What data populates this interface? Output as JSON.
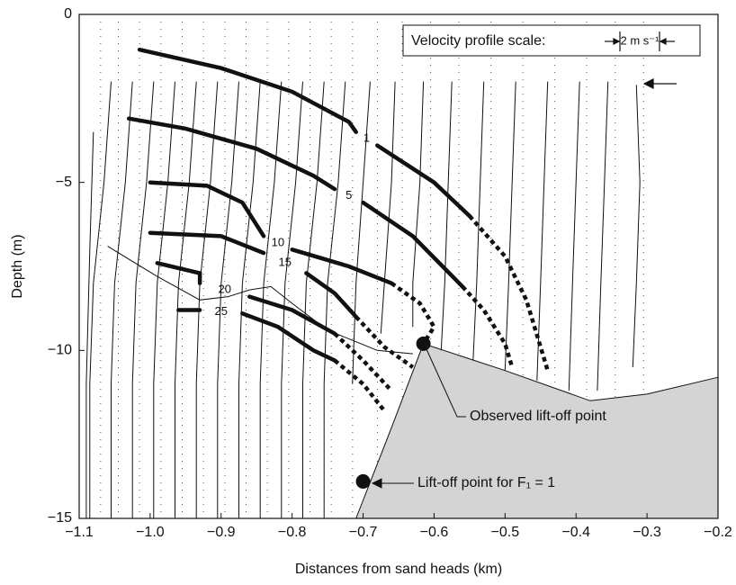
{
  "chart_data": {
    "type": "line",
    "x_label": "Distances from sand heads (km)",
    "y_label": "Depth (m)",
    "xlim": [
      -1.1,
      -0.2
    ],
    "ylim": [
      -15,
      0
    ],
    "xticks": [
      {
        "value": -1.1,
        "label": "−1.1"
      },
      {
        "value": -1.0,
        "label": "−1.0"
      },
      {
        "value": -0.9,
        "label": "−0.9"
      },
      {
        "value": -0.8,
        "label": "−0.8"
      },
      {
        "value": -0.7,
        "label": "−0.7"
      },
      {
        "value": -0.6,
        "label": "−0.6"
      },
      {
        "value": -0.5,
        "label": "−0.5"
      },
      {
        "value": -0.4,
        "label": "−0.4"
      },
      {
        "value": -0.3,
        "label": "−0.3"
      },
      {
        "value": -0.2,
        "label": "−0.2"
      }
    ],
    "yticks": [
      0,
      {
        "value": -5,
        "label": "−5"
      },
      {
        "value": -10,
        "label": "−10"
      },
      {
        "value": -15,
        "label": "−15"
      }
    ],
    "scale_title": "Velocity profile scale:",
    "scale_label": "2 m s⁻¹",
    "series": [
      {
        "name": "1",
        "color": "#111111",
        "x": [
          -1.015,
          -0.9,
          -0.8,
          -0.72,
          -0.71,
          null,
          -0.68,
          -0.6,
          -0.55
        ],
        "values": [
          -1.05,
          -1.6,
          -2.3,
          -3.2,
          -3.5,
          null,
          -3.9,
          -5.0,
          -6.0
        ],
        "dashed_x": [
          -0.55,
          -0.5,
          -0.47,
          -0.44
        ],
        "dashed_values": [
          -6.0,
          -7.2,
          -8.5,
          -10.6
        ]
      },
      {
        "name": "5",
        "color": "#111111",
        "x": [
          -1.03,
          -0.95,
          -0.85,
          -0.77,
          -0.74,
          null,
          -0.7,
          -0.63,
          -0.56
        ],
        "values": [
          -3.1,
          -3.4,
          -4.0,
          -4.8,
          -5.2,
          null,
          -5.6,
          -6.6,
          -8.1
        ],
        "dashed_x": [
          -0.56,
          -0.53,
          -0.5,
          -0.49
        ],
        "dashed_values": [
          -8.1,
          -8.8,
          -9.8,
          -10.5
        ]
      },
      {
        "name": "10",
        "color": "#111111",
        "x": [
          -1.0,
          -0.92,
          -0.87,
          -0.84,
          null,
          -0.8,
          -0.72,
          -0.66
        ],
        "values": [
          -5.0,
          -5.1,
          -5.6,
          -6.6,
          null,
          -7.0,
          -7.5,
          -8.0
        ],
        "dashed_x": [
          -0.66,
          -0.62,
          -0.6,
          -0.615
        ],
        "dashed_values": [
          -8.0,
          -8.6,
          -9.3,
          -9.8
        ]
      },
      {
        "name": "15",
        "color": "#111111",
        "x": [
          -1.0,
          -0.9,
          -0.84,
          null,
          -0.78,
          -0.74,
          -0.71
        ],
        "values": [
          -6.5,
          -6.6,
          -7.1,
          null,
          -7.7,
          -8.3,
          -9.0
        ],
        "dashed_x": [
          -0.71,
          -0.67,
          -0.63
        ],
        "dashed_values": [
          -9.0,
          -9.9,
          -10.5
        ]
      },
      {
        "name": "20",
        "color": "#111111",
        "x": [
          -0.99,
          -0.93,
          -0.93,
          null,
          -0.86,
          -0.8,
          -0.74
        ],
        "values": [
          -7.4,
          -7.7,
          -8.0,
          null,
          -8.4,
          -8.8,
          -9.5
        ],
        "dashed_x": [
          -0.74,
          -0.7,
          -0.66
        ],
        "dashed_values": [
          -9.5,
          -10.3,
          -11.2
        ]
      },
      {
        "name": "25",
        "color": "#111111",
        "x": [
          -0.96,
          -0.93,
          null,
          -0.87,
          -0.82,
          -0.77,
          -0.74
        ],
        "values": [
          -8.8,
          -8.8,
          null,
          -8.9,
          -9.3,
          -10.0,
          -10.3
        ],
        "dashed_x": [
          -0.74,
          -0.7,
          -0.67
        ],
        "dashed_values": [
          -10.3,
          -11.0,
          -11.8
        ]
      }
    ],
    "interface": {
      "x": [
        -1.06,
        -0.99,
        -0.93,
        -0.89,
        -0.86,
        -0.83,
        -0.8,
        -0.75,
        -0.68,
        -0.63
      ],
      "values": [
        -6.9,
        -7.8,
        -8.5,
        -8.4,
        -8.2,
        -8.1,
        -8.6,
        -9.4,
        -10.0,
        -10.1
      ]
    },
    "profiles": [
      {
        "x": [
          -1.08,
          -1.085,
          -1.09,
          -1.09
        ],
        "values": [
          -3.5,
          -7,
          -11,
          -15
        ]
      },
      {
        "x": [
          -1.055,
          -1.065,
          -1.08,
          -1.085,
          -1.085
        ],
        "values": [
          -2,
          -5,
          -8,
          -11,
          -15
        ]
      },
      {
        "x": [
          -1.025,
          -1.035,
          -1.05,
          -1.055,
          -1.055
        ],
        "values": [
          -2,
          -5,
          -8,
          -11,
          -15
        ]
      },
      {
        "x": [
          -0.995,
          -1.005,
          -1.02,
          -1.025,
          -1.025
        ],
        "values": [
          -2,
          -5,
          -8,
          -11,
          -15
        ]
      },
      {
        "x": [
          -0.965,
          -0.975,
          -0.99,
          -0.995,
          -0.995
        ],
        "values": [
          -2,
          -5,
          -8,
          -11,
          -15
        ]
      },
      {
        "x": [
          -0.935,
          -0.945,
          -0.96,
          -0.965,
          -0.965
        ],
        "values": [
          -2,
          -5,
          -8,
          -11,
          -15
        ]
      },
      {
        "x": [
          -0.905,
          -0.915,
          -0.93,
          -0.935,
          -0.935
        ],
        "values": [
          -2,
          -5,
          -8,
          -11,
          -15
        ]
      },
      {
        "x": [
          -0.875,
          -0.885,
          -0.9,
          -0.905,
          -0.905
        ],
        "values": [
          -2,
          -5,
          -8,
          -11,
          -15
        ]
      },
      {
        "x": [
          -0.845,
          -0.855,
          -0.87,
          -0.875,
          -0.875
        ],
        "values": [
          -2,
          -5,
          -8,
          -11,
          -15
        ]
      },
      {
        "x": [
          -0.815,
          -0.825,
          -0.84,
          -0.845,
          -0.845
        ],
        "values": [
          -2,
          -5,
          -8,
          -11,
          -15
        ]
      },
      {
        "x": [
          -0.785,
          -0.795,
          -0.81,
          -0.815,
          -0.815
        ],
        "values": [
          -2,
          -5,
          -8,
          -11,
          -15
        ]
      },
      {
        "x": [
          -0.755,
          -0.765,
          -0.78,
          -0.785,
          -0.785
        ],
        "values": [
          -2,
          -5,
          -8,
          -11,
          -15
        ]
      },
      {
        "x": [
          -0.725,
          -0.735,
          -0.75,
          -0.755,
          -0.755
        ],
        "values": [
          -2,
          -5,
          -8,
          -11,
          -15
        ]
      },
      {
        "x": [
          -0.69,
          -0.7,
          -0.71,
          -0.715
        ],
        "values": [
          -2,
          -5,
          -8,
          -11
        ]
      },
      {
        "x": [
          -0.655,
          -0.66,
          -0.67,
          -0.675
        ],
        "values": [
          -2,
          -5,
          -8,
          -9.5
        ]
      },
      {
        "x": [
          -0.615,
          -0.62,
          -0.63,
          -0.63
        ],
        "values": [
          -2,
          -5,
          -8,
          -9.3
        ]
      },
      {
        "x": [
          -0.575,
          -0.58,
          -0.585,
          -0.59
        ],
        "values": [
          -2,
          -5,
          -8,
          -10
        ]
      },
      {
        "x": [
          -0.53,
          -0.535,
          -0.54,
          -0.545
        ],
        "values": [
          -2,
          -5,
          -8,
          -10.3
        ]
      },
      {
        "x": [
          -0.485,
          -0.49,
          -0.495,
          -0.5
        ],
        "values": [
          -2,
          -5,
          -8,
          -10.6
        ]
      },
      {
        "x": [
          -0.44,
          -0.445,
          -0.45,
          -0.455
        ],
        "values": [
          -2,
          -5,
          -8,
          -10.9
        ]
      },
      {
        "x": [
          -0.395,
          -0.4,
          -0.405,
          -0.41
        ],
        "values": [
          -2,
          -5,
          -8,
          -11.2
        ]
      },
      {
        "x": [
          -0.355,
          -0.36,
          -0.365,
          -0.37
        ],
        "values": [
          -2,
          -5,
          -8,
          -11.2
        ]
      },
      {
        "x": [
          -0.315,
          -0.31,
          -0.315,
          -0.32
        ],
        "values": [
          -2.1,
          -5,
          -8,
          -10.5
        ]
      }
    ],
    "bed": {
      "color": "#d4d4d4",
      "x": [
        -0.71,
        -0.66,
        -0.615,
        -0.5,
        -0.38,
        -0.3,
        -0.2,
        -0.2
      ],
      "values": [
        -15,
        -12.3,
        -9.8,
        -10.6,
        -11.5,
        -11.3,
        -10.8,
        -15
      ]
    },
    "points": [
      {
        "label": "Observed lift-off point",
        "x": -0.615,
        "y": -9.8
      },
      {
        "label": "Lift-off point for F₁ = 1",
        "x": -0.7,
        "y": -13.9
      }
    ]
  }
}
